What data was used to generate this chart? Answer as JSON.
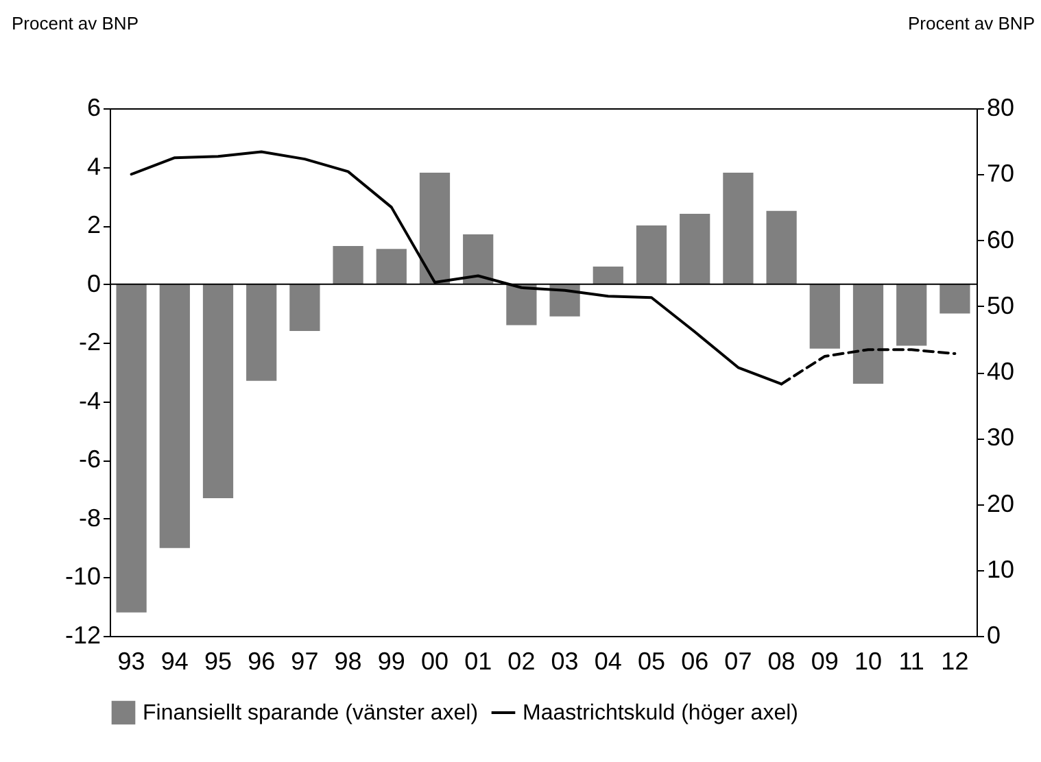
{
  "chart_data": {
    "type": "bar",
    "ylabel": "Procent av BNP",
    "y2label": "Procent av BNP",
    "categories": [
      "93",
      "94",
      "95",
      "96",
      "97",
      "98",
      "99",
      "00",
      "01",
      "02",
      "03",
      "04",
      "05",
      "06",
      "07",
      "08",
      "09",
      "10",
      "11",
      "12"
    ],
    "series": [
      {
        "name": "Finansiellt sparande (vänster axel)",
        "color": "#808080",
        "values": [
          -11.2,
          -9.0,
          -7.3,
          -3.3,
          -1.6,
          1.3,
          1.2,
          3.8,
          1.7,
          -1.4,
          -1.1,
          0.6,
          2.0,
          2.4,
          3.8,
          2.5,
          -2.2,
          -3.4,
          -2.1,
          -1.0
        ]
      },
      {
        "name": "Maastrichtskuld (höger axel)",
        "type": "line",
        "axis": "y2",
        "color": "#000000",
        "line_style": "solid",
        "values": [
          70.0,
          72.5,
          72.7,
          73.4,
          72.3,
          70.4,
          65.0,
          53.6,
          54.6,
          52.8,
          52.4,
          51.5,
          51.3,
          46.1,
          40.7,
          38.2,
          null,
          null,
          null,
          null
        ]
      },
      {
        "type": "line",
        "axis": "y2",
        "color": "#000000",
        "line_style": "dashed",
        "values": [
          null,
          null,
          null,
          null,
          null,
          null,
          null,
          null,
          null,
          null,
          null,
          null,
          null,
          null,
          null,
          38.2,
          42.4,
          43.4,
          43.4,
          42.8
        ]
      }
    ],
    "ylim": [
      -12,
      6
    ],
    "yticks": [
      -12,
      -10,
      -8,
      -6,
      -4,
      -2,
      0,
      2,
      4,
      6
    ],
    "y2lim": [
      0,
      80
    ],
    "y2ticks": [
      0,
      10,
      20,
      30,
      40,
      50,
      60,
      70,
      80
    ],
    "ref_lines": [
      {
        "axis": "y",
        "value": 0,
        "color": "#000000"
      }
    ],
    "grid": false,
    "legend": "bottom"
  }
}
